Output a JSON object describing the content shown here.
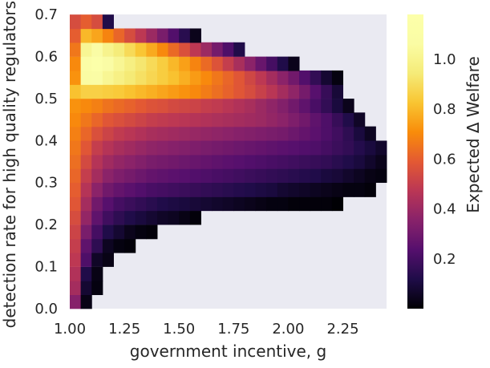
{
  "chart_data": {
    "type": "heatmap",
    "title": "",
    "xlabel": "government incentive, g",
    "ylabel": "detection rate for high quality regulators, ",
    "xlim": [
      1.0,
      2.45
    ],
    "ylim": [
      0.0,
      0.7
    ],
    "xticks": [
      1.0,
      1.25,
      1.5,
      1.75,
      2.0,
      2.25
    ],
    "xtick_labels": [
      "1.00",
      "1.25",
      "1.50",
      "1.75",
      "2.00",
      "2.25"
    ],
    "yticks": [
      0.0,
      0.1,
      0.2,
      0.3,
      0.4,
      0.5,
      0.6,
      0.7
    ],
    "ytick_labels": [
      "0.0",
      "0.1",
      "0.2",
      "0.3",
      "0.4",
      "0.5",
      "0.6",
      "0.7"
    ],
    "colorbar": {
      "label": "Expected Δ Welfare",
      "colormap": "inferno",
      "range": [
        0.0,
        1.18
      ],
      "ticks": [
        0.2,
        0.4,
        0.6,
        0.8,
        1.0
      ],
      "tick_labels": [
        "0.2",
        "0.4",
        "0.6",
        "0.8",
        "1.0"
      ]
    },
    "background_color": "#eaeaf2",
    "cell_width": 0.05,
    "cell_height": 0.0333,
    "row_y_centers": [
      0.017,
      0.05,
      0.083,
      0.117,
      0.15,
      0.183,
      0.217,
      0.25,
      0.283,
      0.317,
      0.35,
      0.383,
      0.417,
      0.45,
      0.483,
      0.517,
      0.55,
      0.583,
      0.617,
      0.65,
      0.683
    ],
    "row_x_starts": [
      1.0,
      1.0,
      1.0,
      1.0,
      1.0,
      1.0,
      1.0,
      1.0,
      1.0,
      1.0,
      1.0,
      1.0,
      1.0,
      1.0,
      1.0,
      1.0,
      1.0,
      1.0,
      1.0,
      1.0,
      1.0
    ],
    "rows": [
      [
        0.35,
        0.03
      ],
      [
        0.42,
        0.08,
        0.02
      ],
      [
        0.45,
        0.12,
        0.03
      ],
      [
        0.48,
        0.22,
        0.06,
        0.03
      ],
      [
        0.5,
        0.26,
        0.15,
        0.05,
        0.02,
        0.01
      ],
      [
        0.52,
        0.32,
        0.2,
        0.12,
        0.08,
        0.04,
        0.02,
        0.01
      ],
      [
        0.55,
        0.38,
        0.26,
        0.19,
        0.15,
        0.12,
        0.1,
        0.08,
        0.06,
        0.05,
        0.03,
        0.01
      ],
      [
        0.58,
        0.42,
        0.3,
        0.24,
        0.2,
        0.18,
        0.16,
        0.14,
        0.12,
        0.11,
        0.1,
        0.09,
        0.08,
        0.07,
        0.06,
        0.05,
        0.04,
        0.03,
        0.02,
        0.02,
        0.01,
        0.01,
        0.01,
        0.01,
        0.0
      ],
      [
        0.6,
        0.46,
        0.36,
        0.3,
        0.27,
        0.25,
        0.23,
        0.21,
        0.2,
        0.19,
        0.18,
        0.17,
        0.16,
        0.15,
        0.14,
        0.13,
        0.12,
        0.11,
        0.1,
        0.08,
        0.07,
        0.06,
        0.05,
        0.04,
        0.03,
        0.02,
        0.02,
        0.01
      ],
      [
        0.62,
        0.5,
        0.42,
        0.36,
        0.33,
        0.31,
        0.29,
        0.27,
        0.26,
        0.25,
        0.24,
        0.23,
        0.22,
        0.21,
        0.2,
        0.19,
        0.18,
        0.17,
        0.16,
        0.15,
        0.14,
        0.13,
        0.12,
        0.1,
        0.09,
        0.07,
        0.05,
        0.03,
        0.02
      ],
      [
        0.64,
        0.54,
        0.46,
        0.41,
        0.38,
        0.36,
        0.34,
        0.32,
        0.31,
        0.3,
        0.29,
        0.28,
        0.27,
        0.26,
        0.25,
        0.24,
        0.23,
        0.22,
        0.21,
        0.2,
        0.19,
        0.18,
        0.17,
        0.16,
        0.14,
        0.12,
        0.1,
        0.07,
        0.04,
        0.02
      ],
      [
        0.66,
        0.58,
        0.5,
        0.46,
        0.43,
        0.41,
        0.39,
        0.37,
        0.36,
        0.35,
        0.34,
        0.33,
        0.32,
        0.31,
        0.3,
        0.29,
        0.28,
        0.27,
        0.26,
        0.25,
        0.24,
        0.23,
        0.22,
        0.2,
        0.18,
        0.16,
        0.13,
        0.1,
        0.07,
        0.04
      ],
      [
        0.68,
        0.62,
        0.56,
        0.52,
        0.49,
        0.47,
        0.45,
        0.43,
        0.42,
        0.41,
        0.4,
        0.39,
        0.38,
        0.37,
        0.36,
        0.35,
        0.34,
        0.33,
        0.32,
        0.31,
        0.29,
        0.27,
        0.25,
        0.22,
        0.19,
        0.15,
        0.1,
        0.05
      ],
      [
        0.7,
        0.66,
        0.62,
        0.58,
        0.56,
        0.54,
        0.52,
        0.5,
        0.49,
        0.48,
        0.47,
        0.46,
        0.45,
        0.44,
        0.43,
        0.42,
        0.41,
        0.4,
        0.38,
        0.36,
        0.33,
        0.3,
        0.26,
        0.22,
        0.17,
        0.12,
        0.06
      ],
      [
        0.72,
        0.7,
        0.68,
        0.65,
        0.63,
        0.61,
        0.59,
        0.57,
        0.56,
        0.54,
        0.53,
        0.52,
        0.5,
        0.49,
        0.47,
        0.45,
        0.43,
        0.4,
        0.37,
        0.34,
        0.3,
        0.26,
        0.21,
        0.16,
        0.1,
        0.04
      ],
      [
        0.82,
        0.86,
        0.86,
        0.85,
        0.84,
        0.82,
        0.8,
        0.78,
        0.76,
        0.74,
        0.72,
        0.7,
        0.67,
        0.64,
        0.61,
        0.58,
        0.55,
        0.51,
        0.47,
        0.42,
        0.37,
        0.31,
        0.24,
        0.17,
        0.09
      ],
      [
        0.72,
        1.06,
        1.08,
        1.02,
        0.98,
        0.94,
        0.91,
        0.88,
        0.85,
        0.82,
        0.78,
        0.74,
        0.7,
        0.66,
        0.62,
        0.58,
        0.53,
        0.48,
        0.42,
        0.36,
        0.3,
        0.23,
        0.16,
        0.08,
        0.02
      ],
      [
        0.7,
        1.1,
        1.17,
        1.08,
        1.02,
        0.97,
        0.93,
        0.89,
        0.85,
        0.8,
        0.75,
        0.69,
        0.63,
        0.57,
        0.5,
        0.43,
        0.36,
        0.28,
        0.2,
        0.12,
        0.04
      ],
      [
        0.66,
        1.02,
        1.08,
        1.0,
        0.95,
        0.89,
        0.83,
        0.77,
        0.7,
        0.63,
        0.56,
        0.48,
        0.4,
        0.31,
        0.22,
        0.12
      ],
      [
        0.6,
        0.8,
        0.76,
        0.69,
        0.62,
        0.55,
        0.48,
        0.4,
        0.32,
        0.23,
        0.14,
        0.04
      ],
      [
        0.55,
        0.6,
        0.55,
        0.12
      ]
    ]
  }
}
